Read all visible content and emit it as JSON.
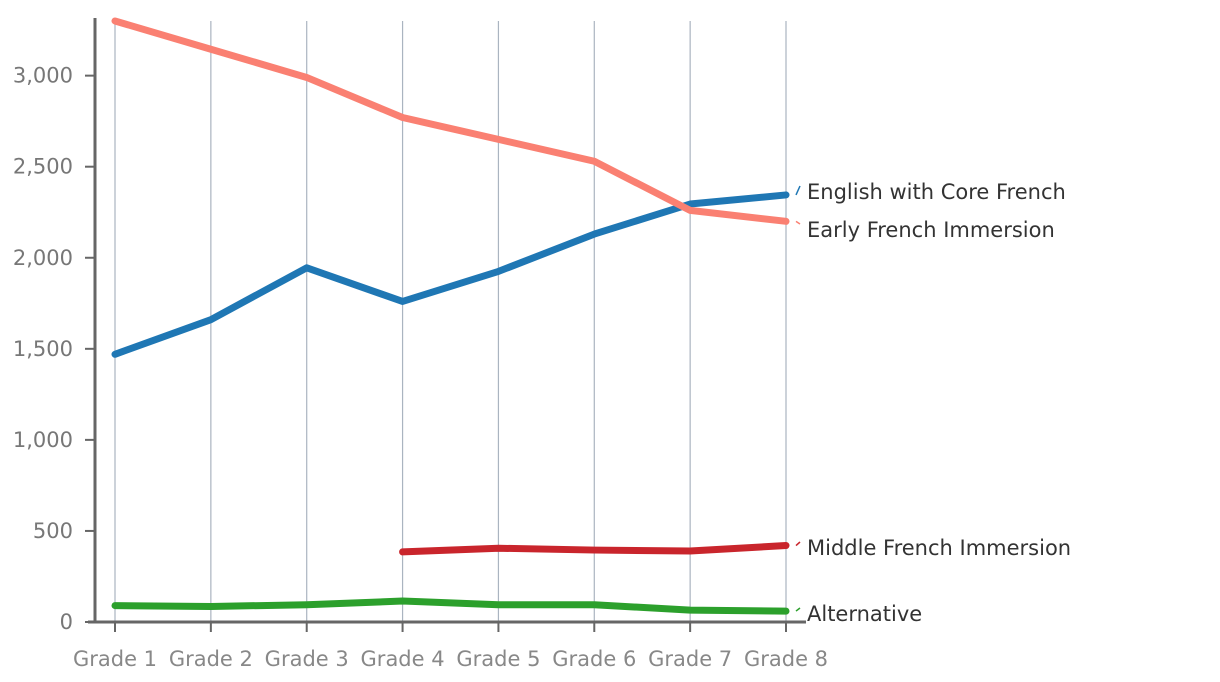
{
  "chart_data": {
    "type": "line",
    "categories": [
      "Grade 1",
      "Grade 2",
      "Grade 3",
      "Grade 4",
      "Grade 5",
      "Grade 6",
      "Grade 7",
      "Grade 8"
    ],
    "ylim": [
      0,
      3300
    ],
    "yticks": [
      0,
      500,
      1000,
      1500,
      2000,
      2500,
      3000
    ],
    "ytick_labels": [
      "0",
      "500",
      "1,000",
      "1,500",
      "2,000",
      "2,500",
      "3,000"
    ],
    "grid": "vertical",
    "legend": "direct labels at right end of lines",
    "series": [
      {
        "name": "English with Core French",
        "color": "#1f77b4",
        "values": [
          1470,
          1660,
          1945,
          1760,
          1925,
          2130,
          2295,
          2345
        ]
      },
      {
        "name": "Early French Immersion",
        "color": "#fa8072",
        "values": [
          3300,
          3145,
          2990,
          2770,
          2650,
          2530,
          2260,
          2200
        ]
      },
      {
        "name": "Middle French Immersion",
        "color": "#c9252c",
        "values": [
          null,
          null,
          null,
          385,
          405,
          395,
          390,
          420
        ]
      },
      {
        "name": "Alternative",
        "color": "#2ca02c",
        "values": [
          90,
          85,
          95,
          115,
          95,
          95,
          65,
          60
        ]
      }
    ]
  }
}
